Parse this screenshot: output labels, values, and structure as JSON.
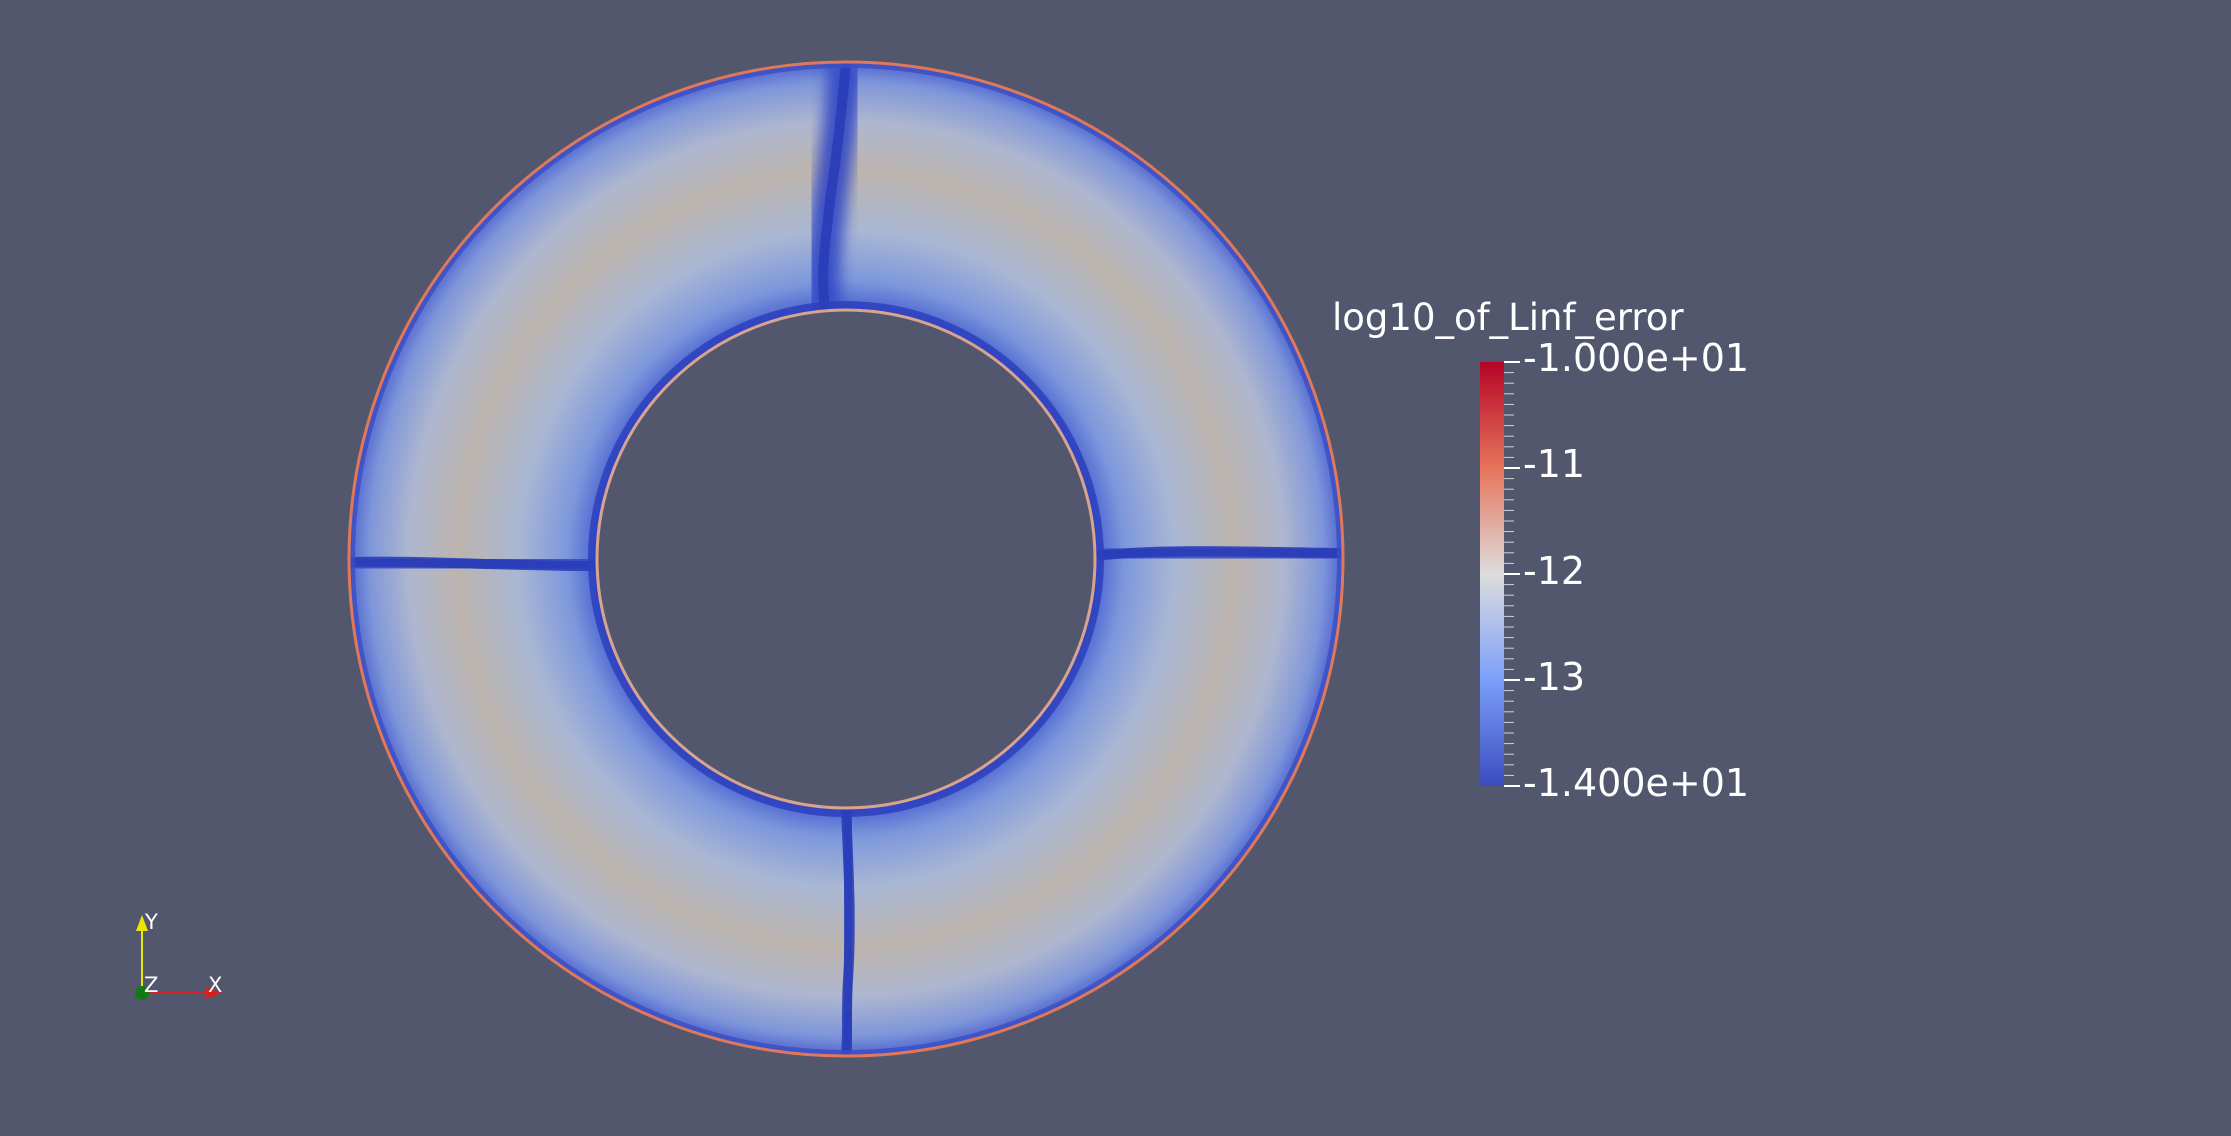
{
  "scalar_bar": {
    "title": "log10_of_Linf_error",
    "range": [
      -14,
      -10
    ],
    "labels": [
      {
        "text": "-1.000e+01",
        "value": -10
      },
      {
        "text": "-11",
        "value": -11
      },
      {
        "text": "-12",
        "value": -12
      },
      {
        "text": "-13",
        "value": -13
      },
      {
        "text": "-1.400e+01",
        "value": -14
      }
    ],
    "colors": {
      "high": "#b40426",
      "mid": "#dddddd",
      "low": "#3b4cc0"
    }
  },
  "orientation_axes": {
    "y_label": "Y",
    "z_label": "Z",
    "x_label": "X",
    "colors": {
      "x": "#d42020",
      "y": "#e8e800",
      "z": "#137a13"
    }
  },
  "background_color": "#52576e"
}
